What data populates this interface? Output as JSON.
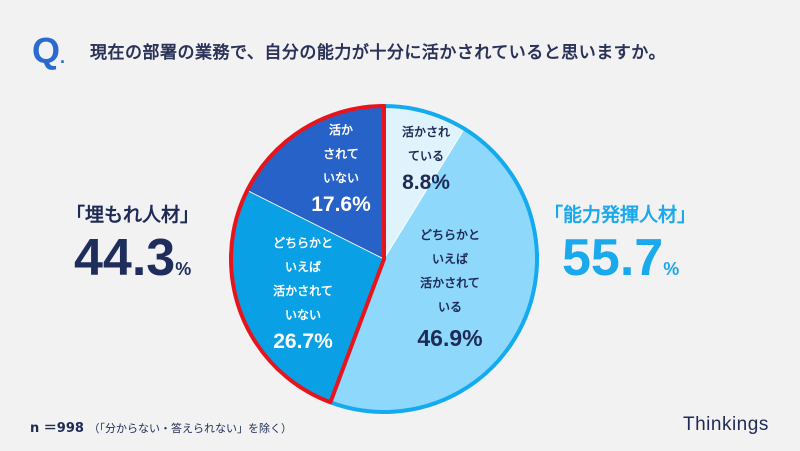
{
  "question": {
    "mark": "Q",
    "text": "現在の部署の業務で、自分の能力が十分に活かされていると思いますか。"
  },
  "left_group": {
    "label": "「埋もれ人材」",
    "value": "44.3",
    "unit": "%",
    "color": "#e8141c"
  },
  "right_group": {
    "label": "「能力発揮人材」",
    "value": "55.7",
    "unit": "%",
    "color": "#14aaf0"
  },
  "chart_data": {
    "type": "pie",
    "start": "top",
    "direction": "clockwise",
    "slices": [
      {
        "label": [
          "活かされ",
          "ている"
        ],
        "value": 8.8,
        "display": "8.8%",
        "color": "#dff3fd"
      },
      {
        "label": [
          "どちらかと",
          "いえば",
          "活かされて",
          "いる"
        ],
        "value": 46.9,
        "display": "46.9%",
        "color": "#8ed8fb"
      },
      {
        "label": [
          "どちらかと",
          "いえば",
          "活かされて",
          "いない"
        ],
        "value": 26.7,
        "display": "26.7%",
        "color": "#0aa0e6"
      },
      {
        "label": [
          "活か",
          "されて",
          "いない"
        ],
        "value": 17.6,
        "display": "17.6%",
        "color": "#2662c8"
      }
    ]
  },
  "footer": {
    "n": "n ＝998",
    "note": "（「分からない・答えられない」を除く）",
    "brand": "Thinkings"
  }
}
